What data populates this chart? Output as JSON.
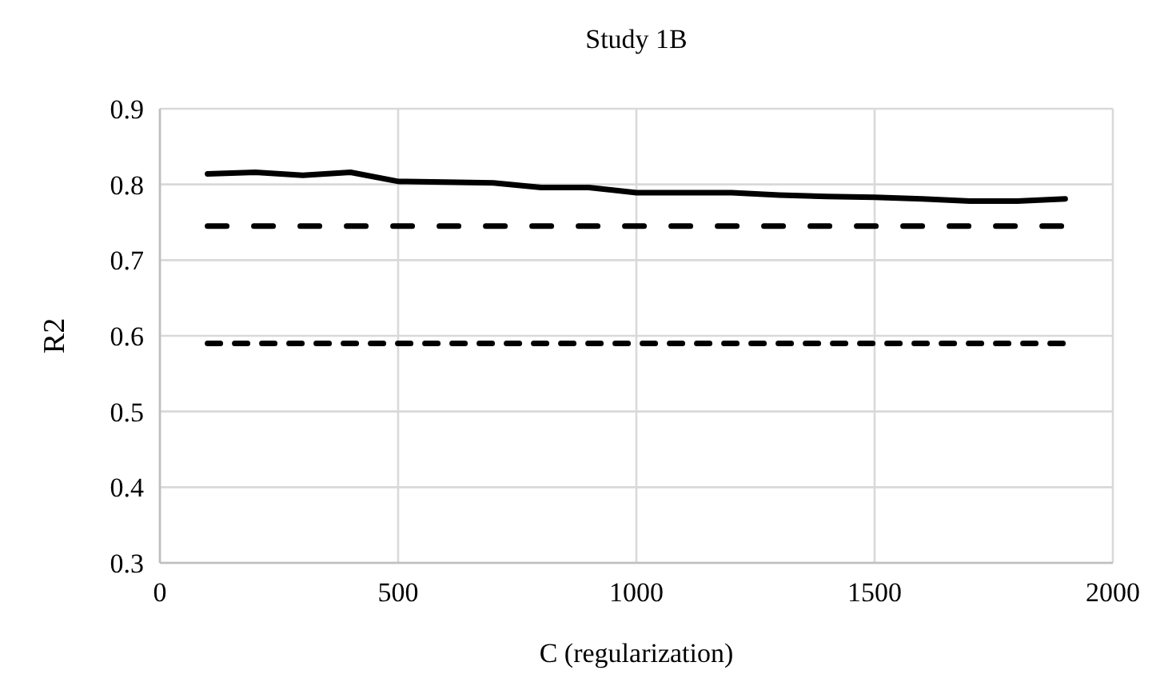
{
  "chart_data": {
    "type": "line",
    "title": "Study 1B",
    "xlabel": "C (regularization)",
    "ylabel": "R2",
    "xlim": [
      0,
      2000
    ],
    "xticks": [
      0,
      500,
      1000,
      1500,
      2000
    ],
    "ylim": [
      0.3,
      0.9
    ],
    "yticks": [
      0.3,
      0.4,
      0.5,
      0.6,
      0.7,
      0.8,
      0.9
    ],
    "grid": true,
    "series": [
      {
        "color": "#000000",
        "line_style": "solid",
        "x": [
          100,
          200,
          300,
          400,
          500,
          600,
          700,
          800,
          900,
          1000,
          1100,
          1200,
          1300,
          1400,
          1500,
          1600,
          1700,
          1800,
          1900
        ],
        "values": [
          0.814,
          0.816,
          0.812,
          0.816,
          0.804,
          0.803,
          0.802,
          0.796,
          0.796,
          0.789,
          0.789,
          0.789,
          0.786,
          0.784,
          0.783,
          0.781,
          0.778,
          0.778,
          0.781
        ]
      },
      {
        "color": "#000000",
        "line_style": "dashed",
        "x": [
          100,
          1900
        ],
        "values": [
          0.745,
          0.745
        ]
      },
      {
        "color": "#000000",
        "line_style": "dotted",
        "x": [
          100,
          1900
        ],
        "values": [
          0.59,
          0.59
        ]
      }
    ]
  }
}
